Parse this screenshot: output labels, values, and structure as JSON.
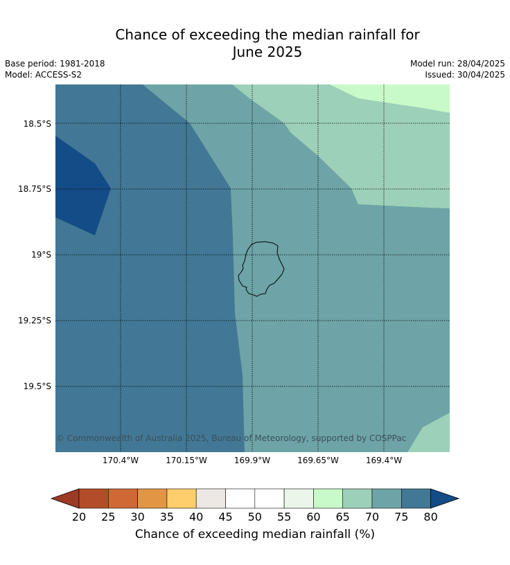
{
  "title_line1": "Chance of exceeding the median rainfall for",
  "title_line2": "June 2025",
  "base_period": "Base period: 1981-2018",
  "model": "Model: ACCESS-S2",
  "model_run": "Model run: 28/04/2025",
  "issued": "Issued: 30/04/2025",
  "copyright": "© Commonwealth of Australia 2025, Bureau of Meteorology, supported by COSPPac",
  "lat_labels": [
    "18.5°S",
    "18.75°S",
    "19°S",
    "19.25°S",
    "19.5°S"
  ],
  "lon_labels": [
    "170.4°W",
    "170.15°W",
    "169.9°W",
    "169.65°W",
    "169.4°W"
  ],
  "colorbar": {
    "label": "Chance of exceeding median rainfall (%)",
    "ticks": [
      "20",
      "25",
      "30",
      "35",
      "40",
      "45",
      "50",
      "55",
      "60",
      "65",
      "70",
      "75",
      "80"
    ],
    "colors": [
      "#9c3b25",
      "#b34d29",
      "#cf6834",
      "#e39546",
      "#fdce6b",
      "#ede8e3",
      "#ffffff",
      "#ffffff",
      "#eaf6ea",
      "#c8fac9",
      "#9dd0b8",
      "#6ea4a7",
      "#427895",
      "#144c88"
    ]
  },
  "map_colors": {
    "band_75_80": "#427895",
    "band_over_80": "#144c88",
    "band_70_75": "#6ea4a7",
    "band_65_70": "#9dd0b8",
    "band_60_65": "#c8fac9"
  }
}
